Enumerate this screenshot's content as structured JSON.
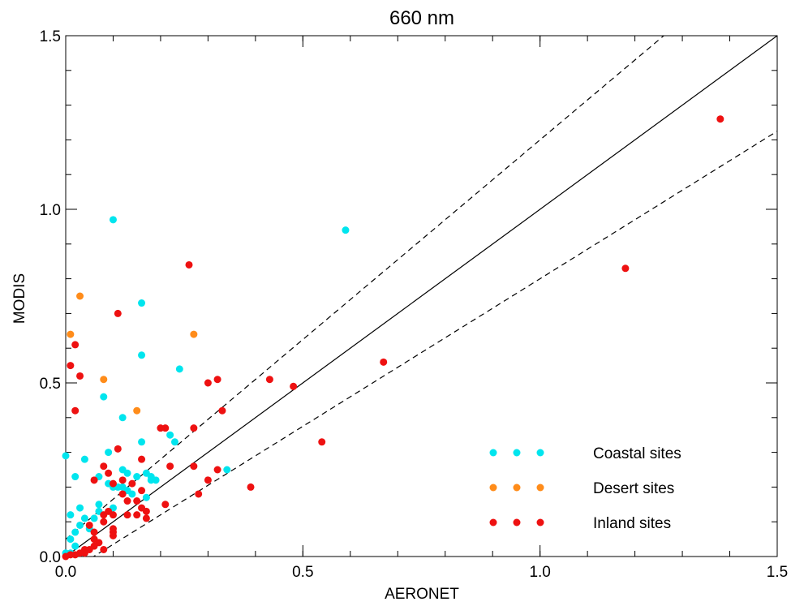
{
  "chart_data": {
    "type": "scatter",
    "title": "660 nm",
    "xlabel": "AERONET",
    "ylabel": "MODIS",
    "xlim": [
      0.0,
      1.5
    ],
    "ylim": [
      0.0,
      1.5
    ],
    "x_ticks": [
      {
        "value": 0.0,
        "label": "0.0"
      },
      {
        "value": 0.5,
        "label": "0.5"
      },
      {
        "value": 1.0,
        "label": "1.0"
      },
      {
        "value": 1.5,
        "label": "1.5"
      }
    ],
    "y_ticks": [
      {
        "value": 0.0,
        "label": "0.0"
      },
      {
        "value": 0.5,
        "label": "0.5"
      },
      {
        "value": 1.0,
        "label": "1.0"
      },
      {
        "value": 1.5,
        "label": "1.5"
      }
    ],
    "minor_tick_step": 0.1,
    "grid": false,
    "legend_position": "bottom-right",
    "reference_lines": [
      {
        "slope": 1.0,
        "intercept": 0.0,
        "style": "solid"
      },
      {
        "slope": 1.15,
        "intercept": 0.05,
        "style": "dashed"
      },
      {
        "slope": 0.85,
        "intercept": -0.05,
        "style": "dashed"
      }
    ],
    "series": [
      {
        "name": "Coastal sites",
        "color": "#00e5ee",
        "points": [
          [
            0.1,
            0.97
          ],
          [
            0.59,
            0.94
          ],
          [
            0.16,
            0.73
          ],
          [
            0.16,
            0.58
          ],
          [
            0.24,
            0.54
          ],
          [
            0.08,
            0.46
          ],
          [
            0.12,
            0.4
          ],
          [
            0.22,
            0.35
          ],
          [
            0.23,
            0.33
          ],
          [
            0.16,
            0.33
          ],
          [
            0.09,
            0.3
          ],
          [
            0.0,
            0.29
          ],
          [
            0.04,
            0.28
          ],
          [
            0.34,
            0.25
          ],
          [
            0.12,
            0.25
          ],
          [
            0.07,
            0.23
          ],
          [
            0.02,
            0.23
          ],
          [
            0.13,
            0.24
          ],
          [
            0.17,
            0.24
          ],
          [
            0.18,
            0.23
          ],
          [
            0.15,
            0.23
          ],
          [
            0.18,
            0.22
          ],
          [
            0.19,
            0.22
          ],
          [
            0.09,
            0.21
          ],
          [
            0.1,
            0.2
          ],
          [
            0.11,
            0.2
          ],
          [
            0.12,
            0.2
          ],
          [
            0.13,
            0.19
          ],
          [
            0.14,
            0.18
          ],
          [
            0.17,
            0.17
          ],
          [
            0.07,
            0.15
          ],
          [
            0.1,
            0.14
          ],
          [
            0.03,
            0.14
          ],
          [
            0.07,
            0.13
          ],
          [
            0.01,
            0.12
          ],
          [
            0.04,
            0.11
          ],
          [
            0.06,
            0.11
          ],
          [
            0.03,
            0.09
          ],
          [
            0.05,
            0.08
          ],
          [
            0.02,
            0.07
          ],
          [
            0.01,
            0.05
          ],
          [
            0.02,
            0.03
          ],
          [
            0.0,
            0.01
          ],
          [
            0.01,
            0.01
          ]
        ]
      },
      {
        "name": "Desert sites",
        "color": "#ff8c1a",
        "points": [
          [
            0.03,
            0.75
          ],
          [
            0.01,
            0.64
          ],
          [
            0.27,
            0.64
          ],
          [
            0.08,
            0.51
          ],
          [
            0.15,
            0.42
          ]
        ]
      },
      {
        "name": "Inland sites",
        "color": "#ee1111",
        "points": [
          [
            1.38,
            1.26
          ],
          [
            0.26,
            0.84
          ],
          [
            1.18,
            0.83
          ],
          [
            0.11,
            0.7
          ],
          [
            0.02,
            0.61
          ],
          [
            0.67,
            0.56
          ],
          [
            0.01,
            0.55
          ],
          [
            0.03,
            0.52
          ],
          [
            0.43,
            0.51
          ],
          [
            0.32,
            0.51
          ],
          [
            0.3,
            0.5
          ],
          [
            0.48,
            0.49
          ],
          [
            0.33,
            0.42
          ],
          [
            0.02,
            0.42
          ],
          [
            0.21,
            0.37
          ],
          [
            0.2,
            0.37
          ],
          [
            0.27,
            0.37
          ],
          [
            0.54,
            0.33
          ],
          [
            0.11,
            0.31
          ],
          [
            0.16,
            0.28
          ],
          [
            0.27,
            0.26
          ],
          [
            0.32,
            0.25
          ],
          [
            0.22,
            0.26
          ],
          [
            0.08,
            0.26
          ],
          [
            0.3,
            0.22
          ],
          [
            0.12,
            0.22
          ],
          [
            0.06,
            0.22
          ],
          [
            0.14,
            0.21
          ],
          [
            0.09,
            0.24
          ],
          [
            0.1,
            0.21
          ],
          [
            0.16,
            0.19
          ],
          [
            0.12,
            0.18
          ],
          [
            0.15,
            0.16
          ],
          [
            0.13,
            0.16
          ],
          [
            0.39,
            0.2
          ],
          [
            0.28,
            0.18
          ],
          [
            0.21,
            0.15
          ],
          [
            0.16,
            0.14
          ],
          [
            0.13,
            0.12
          ],
          [
            0.15,
            0.12
          ],
          [
            0.09,
            0.13
          ],
          [
            0.08,
            0.12
          ],
          [
            0.1,
            0.12
          ],
          [
            0.17,
            0.13
          ],
          [
            0.17,
            0.11
          ],
          [
            0.05,
            0.09
          ],
          [
            0.08,
            0.1
          ],
          [
            0.1,
            0.08
          ],
          [
            0.1,
            0.07
          ],
          [
            0.06,
            0.07
          ],
          [
            0.1,
            0.06
          ],
          [
            0.06,
            0.05
          ],
          [
            0.07,
            0.04
          ],
          [
            0.06,
            0.03
          ],
          [
            0.05,
            0.02
          ],
          [
            0.08,
            0.02
          ],
          [
            0.04,
            0.02
          ],
          [
            0.04,
            0.01
          ],
          [
            0.03,
            0.01
          ],
          [
            0.02,
            0.005
          ],
          [
            0.01,
            0.005
          ],
          [
            0.0,
            0.0
          ]
        ]
      }
    ]
  }
}
